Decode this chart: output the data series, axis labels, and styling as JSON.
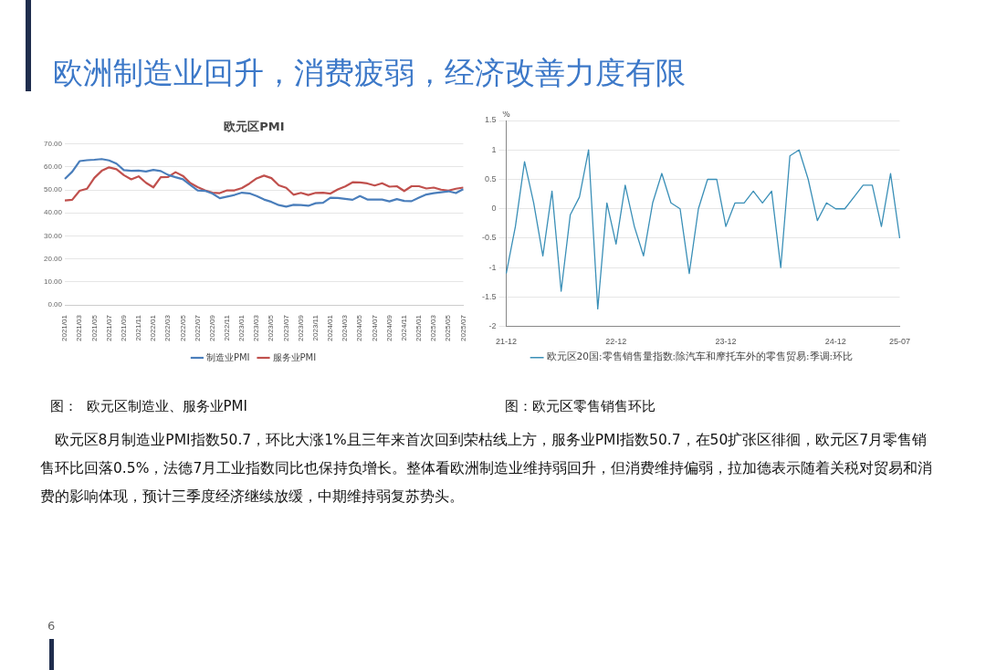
{
  "chart_data": [
    {
      "type": "line",
      "title": "欧元区PMI",
      "categories": [
        "2021/01",
        null,
        "2021/03",
        null,
        "2021/05",
        null,
        "2021/07",
        null,
        "2021/09",
        null,
        "2021/11",
        null,
        "2022/01",
        null,
        "2022/03",
        null,
        "2022/05",
        null,
        "2022/07",
        null,
        "2022/09",
        null,
        "2022/11",
        null,
        "2023/01",
        null,
        "2023/03",
        null,
        "2023/05",
        null,
        "2023/07",
        null,
        "2023/09",
        null,
        "2023/11",
        null,
        "2024/01",
        null,
        "2024/03",
        null,
        "2024/05",
        null,
        "2024/07",
        null,
        "2024/09",
        null,
        "2024/11",
        null,
        "2025/01",
        null,
        "2025/03",
        null,
        "2025/05",
        null,
        "2025/07"
      ],
      "series": [
        {
          "name": "制造业PMI",
          "color": "#4a7ebb",
          "values": [
            54.8,
            57.9,
            62.5,
            62.9,
            63.1,
            63.4,
            62.8,
            61.4,
            58.6,
            58.3,
            58.4,
            58.0,
            58.7,
            58.2,
            56.5,
            55.5,
            54.6,
            52.1,
            49.8,
            49.6,
            48.4,
            46.4,
            47.1,
            47.8,
            48.8,
            48.5,
            47.3,
            45.8,
            44.8,
            43.4,
            42.7,
            43.5,
            43.4,
            43.1,
            44.2,
            44.4,
            46.6,
            46.5,
            46.1,
            45.7,
            47.3,
            45.8,
            45.8,
            45.8,
            45.0,
            46.0,
            45.2,
            45.1,
            46.6,
            48.0,
            48.6,
            49.0,
            49.4,
            48.6,
            50.3
          ]
        },
        {
          "name": "服务业PMI",
          "color": "#c0504d",
          "values": [
            45.4,
            45.7,
            49.6,
            50.5,
            55.2,
            58.3,
            59.8,
            59.0,
            56.4,
            54.6,
            55.9,
            53.1,
            51.1,
            55.5,
            55.6,
            57.7,
            56.1,
            53.0,
            51.2,
            49.8,
            48.8,
            48.6,
            49.8,
            49.8,
            50.8,
            52.7,
            55.0,
            56.2,
            55.1,
            52.0,
            50.9,
            47.9,
            48.7,
            47.8,
            48.7,
            48.8,
            48.4,
            50.2,
            51.5,
            53.3,
            53.2,
            52.8,
            51.9,
            52.9,
            51.4,
            51.6,
            49.5,
            51.6,
            51.6,
            50.6,
            51.0,
            50.1,
            49.7,
            50.5,
            51.0
          ]
        }
      ],
      "ylim": [
        0,
        70
      ],
      "yticks": [
        {
          "value": 0,
          "label": "0.00"
        },
        {
          "value": 10,
          "label": "10.00"
        },
        {
          "value": 20,
          "label": "20.00"
        },
        {
          "value": 30,
          "label": "30.00"
        },
        {
          "value": 40,
          "label": "40.00"
        },
        {
          "value": 50,
          "label": "50.00"
        },
        {
          "value": 60,
          "label": "60.00"
        },
        {
          "value": 70,
          "label": "70.00"
        }
      ],
      "grid": "y",
      "legend": "bottom",
      "marker": "none",
      "line_style": "solid",
      "annotations": [
        "图：  欧元区制造业、服务业PMI"
      ]
    },
    {
      "type": "line",
      "ylabel": "%",
      "categories": [
        "21-12",
        null,
        null,
        null,
        null,
        null,
        null,
        null,
        null,
        null,
        null,
        null,
        "22-12",
        null,
        null,
        null,
        null,
        null,
        null,
        null,
        null,
        null,
        null,
        null,
        "23-12",
        null,
        null,
        null,
        null,
        null,
        null,
        null,
        null,
        null,
        null,
        null,
        "24-12",
        null,
        null,
        null,
        null,
        null,
        null,
        "25-07"
      ],
      "series": [
        {
          "name": "欧元区20国:零售销售量指数:除汽车和摩托车外的零售贸易:季调:环比",
          "color": "#3a8fb7",
          "values": [
            -1.1,
            -0.3,
            0.8,
            0.1,
            -0.8,
            0.3,
            -1.4,
            -0.1,
            0.2,
            1.0,
            -1.7,
            0.1,
            -0.6,
            0.4,
            -0.3,
            -0.8,
            0.1,
            0.6,
            0.1,
            0.0,
            -1.1,
            0.0,
            0.5,
            0.5,
            -0.3,
            0.1,
            0.1,
            0.3,
            0.1,
            0.3,
            -1.0,
            0.9,
            1.0,
            0.5,
            -0.2,
            0.1,
            0.0,
            0.0,
            0.2,
            0.4,
            0.4,
            -0.3,
            0.6,
            -0.5
          ]
        }
      ],
      "ylim": [
        -2,
        1.5
      ],
      "yticks": [
        -2,
        -1.5,
        -1,
        -0.5,
        0,
        0.5,
        1,
        1.5
      ],
      "grid": "y",
      "legend": "bottom",
      "marker": "none",
      "line_style": "solid",
      "annotations": [
        "图：欧元区零售销售环比"
      ]
    },
    {
      "type": "other",
      "title": "欧洲制造业回升，消费疲弱，经济改善力度有限",
      "annotations": [
        "欧元区8月制造业PMI指数50.7，环比大涨1%且三年来首次回到荣枯线上方，服务业PMI指数50.7，在50扩张区徘徊，欧元区7月零售销售环比回落0.5%，法德7月工业指数同比也保持负增长。整体看欧洲制造业维持弱回升，但消费维持偏弱，拉加德表示随着关税对贸易和消费的影响体现，预计三季度经济继续放缓，中期维持弱复苏势头。",
        "6"
      ]
    }
  ]
}
